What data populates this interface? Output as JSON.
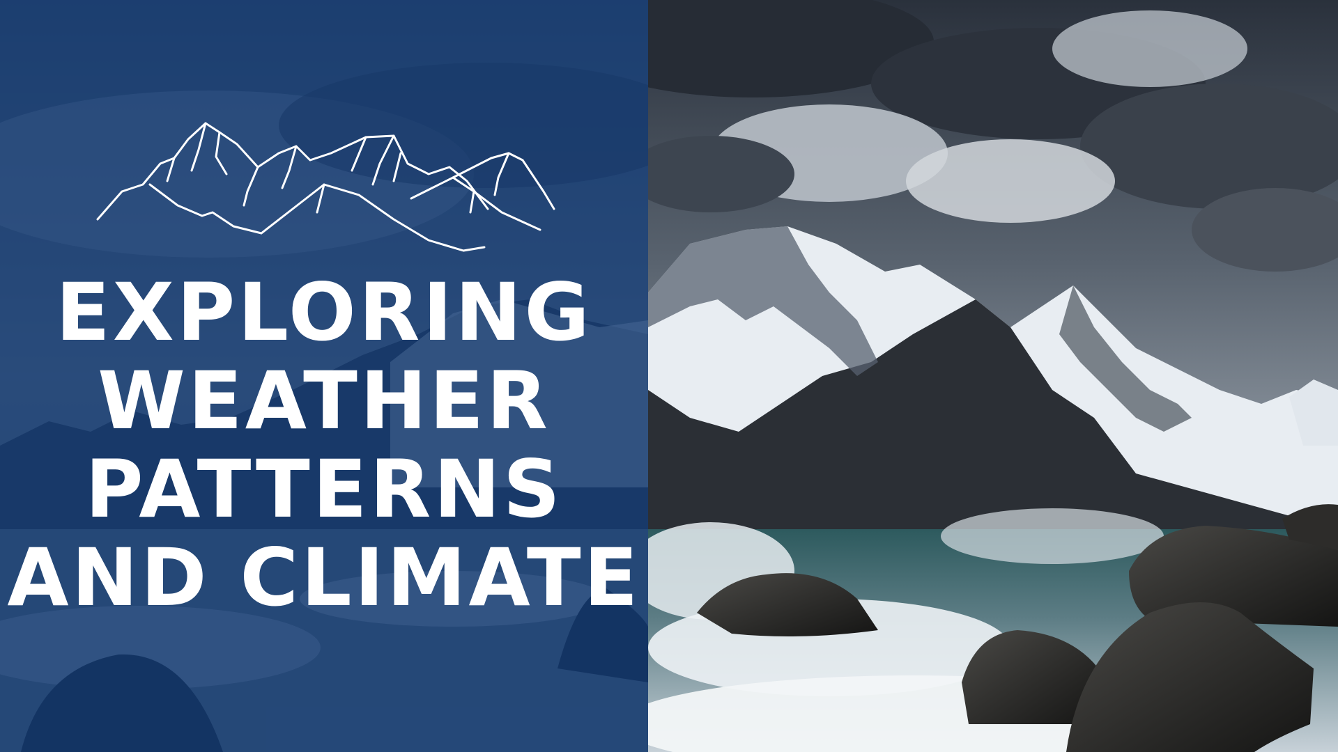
{
  "title": {
    "line1": "EXPLORING",
    "line2": "WEATHER",
    "line3": "PATTERNS",
    "line4": "AND CLIMATE"
  },
  "icons": {
    "logo": "mountain-range-sketch-icon"
  },
  "colors": {
    "panel_blue": "#103a76",
    "title_text": "#ffffff",
    "storm_sky": "#3a4452",
    "sea_foam": "#e9eef2"
  }
}
